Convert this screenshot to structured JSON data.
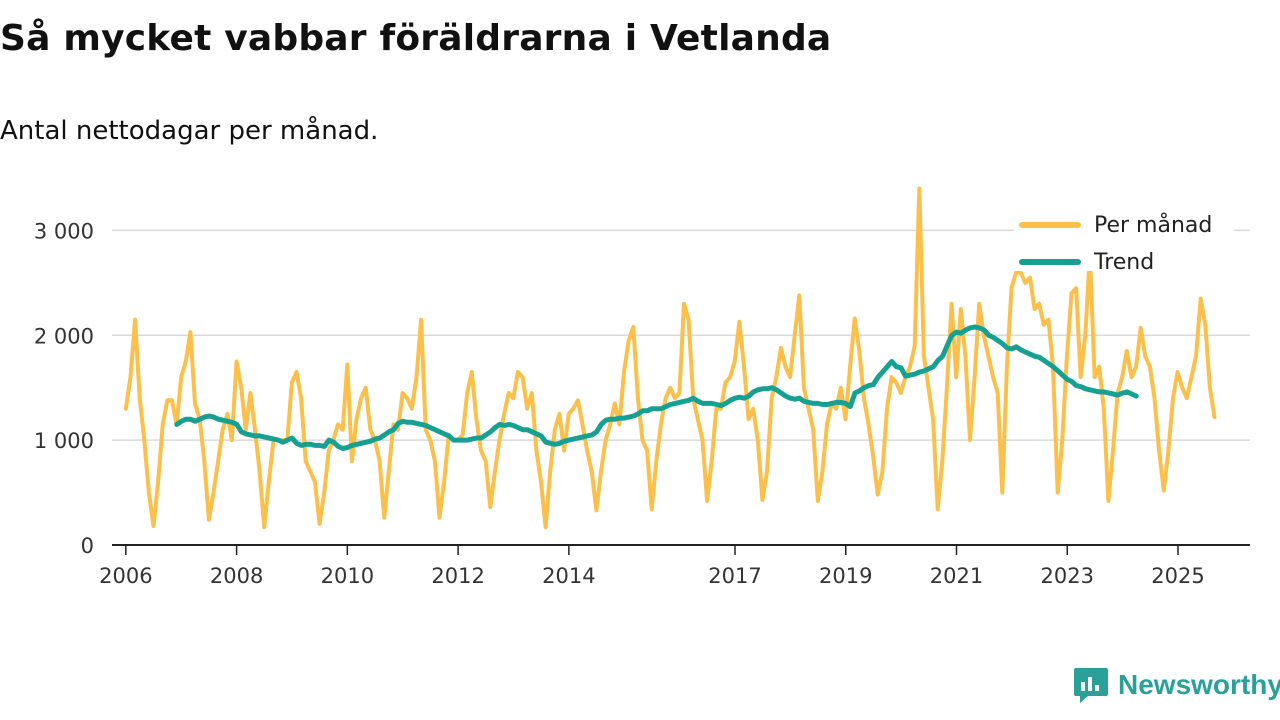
{
  "title": "Så mycket vabbar föräldrarna i Vetlanda",
  "subtitle": "Antal nettodagar per månad.",
  "brand": {
    "name": "Newsworthy"
  },
  "colors": {
    "monthly": "#fcc04a",
    "trend": "#16a092",
    "grid": "#d9d9d9",
    "axis": "#222222",
    "brand": "#2aa198"
  },
  "chart_data": {
    "type": "line",
    "title": "Så mycket vabbar föräldrarna i Vetlanda",
    "subtitle": "Antal nettodagar per månad.",
    "xlabel": "",
    "ylabel": "",
    "xlim": [
      2005.75,
      2026.3
    ],
    "ylim": [
      0,
      3500
    ],
    "grid": true,
    "legend_position": "top-right",
    "x_ticks": [
      2006,
      2008,
      2010,
      2012,
      2014,
      2017,
      2019,
      2021,
      2023,
      2025
    ],
    "x_tick_labels": [
      "2006",
      "2008",
      "2010",
      "2012",
      "2014",
      "2017",
      "2019",
      "2021",
      "2023",
      "2025"
    ],
    "y_ticks": [
      0,
      1000,
      2000,
      3000
    ],
    "y_tick_labels": [
      "0",
      "1 000",
      "2 000",
      "3 000"
    ],
    "series": [
      {
        "name": "Per månad",
        "color": "#fcc04a",
        "start": 2006.0,
        "step": 0.0833,
        "values": [
          1300,
          1600,
          2150,
          1400,
          1000,
          500,
          180,
          600,
          1150,
          1380,
          1380,
          1150,
          1600,
          1750,
          2030,
          1350,
          1200,
          800,
          240,
          500,
          800,
          1100,
          1250,
          1000,
          1750,
          1500,
          1100,
          1450,
          1100,
          700,
          170,
          600,
          1000,
          1000,
          1000,
          1000,
          1550,
          1650,
          1400,
          800,
          700,
          600,
          200,
          500,
          900,
          1000,
          1150,
          1100,
          1720,
          800,
          1200,
          1400,
          1500,
          1100,
          1000,
          800,
          260,
          700,
          1150,
          1100,
          1450,
          1400,
          1300,
          1600,
          2150,
          1100,
          1000,
          800,
          260,
          600,
          1050,
          1000,
          1000,
          1050,
          1450,
          1650,
          1200,
          900,
          800,
          360,
          700,
          1000,
          1250,
          1450,
          1400,
          1650,
          1600,
          1300,
          1450,
          900,
          600,
          170,
          700,
          1100,
          1250,
          900,
          1250,
          1300,
          1380,
          1150,
          900,
          700,
          330,
          700,
          1000,
          1150,
          1350,
          1150,
          1650,
          1950,
          2080,
          1400,
          1000,
          900,
          340,
          800,
          1150,
          1400,
          1500,
          1400,
          1450,
          2300,
          2150,
          1400,
          1200,
          1000,
          420,
          800,
          1300,
          1300,
          1550,
          1600,
          1750,
          2130,
          1700,
          1200,
          1300,
          1000,
          430,
          700,
          1400,
          1600,
          1880,
          1700,
          1600,
          2000,
          2380,
          1500,
          1300,
          1100,
          420,
          700,
          1150,
          1350,
          1300,
          1500,
          1200,
          1700,
          2160,
          1850,
          1400,
          1150,
          850,
          480,
          700,
          1300,
          1600,
          1550,
          1450,
          1600,
          1700,
          1900,
          3400,
          1800,
          1500,
          1200,
          340,
          800,
          1500,
          2300,
          1600,
          2250,
          1800,
          1000,
          1600,
          2300,
          2000,
          1800,
          1600,
          1450,
          500,
          1700,
          2450,
          2600,
          2600,
          2500,
          2550,
          2250,
          2300,
          2100,
          2150,
          1700,
          500,
          1000,
          1800,
          2400,
          2450,
          1600,
          2000,
          2780,
          1600,
          1700,
          1300,
          420,
          900,
          1450,
          1600,
          1850,
          1600,
          1700,
          2070,
          1800,
          1700,
          1400,
          900,
          520,
          900,
          1400,
          1650,
          1500,
          1400,
          1600,
          1800,
          2350,
          2100,
          1500,
          1220
        ]
      },
      {
        "name": "Trend",
        "color": "#16a092",
        "start": 2006.92,
        "step": 0.0833,
        "values": [
          1150,
          1180,
          1200,
          1200,
          1180,
          1200,
          1220,
          1230,
          1220,
          1200,
          1190,
          1180,
          1170,
          1150,
          1080,
          1060,
          1050,
          1040,
          1040,
          1030,
          1020,
          1010,
          1000,
          980,
          1000,
          1020,
          970,
          950,
          960,
          960,
          950,
          950,
          940,
          1000,
          980,
          940,
          920,
          930,
          950,
          960,
          970,
          980,
          990,
          1010,
          1020,
          1050,
          1080,
          1100,
          1160,
          1180,
          1170,
          1170,
          1160,
          1150,
          1140,
          1120,
          1100,
          1080,
          1060,
          1040,
          1000,
          1000,
          1000,
          1000,
          1010,
          1020,
          1020,
          1050,
          1080,
          1120,
          1150,
          1140,
          1150,
          1140,
          1120,
          1100,
          1100,
          1080,
          1060,
          1040,
          980,
          970,
          960,
          970,
          990,
          1000,
          1010,
          1020,
          1030,
          1040,
          1050,
          1080,
          1150,
          1190,
          1200,
          1200,
          1210,
          1210,
          1220,
          1230,
          1250,
          1280,
          1280,
          1300,
          1300,
          1300,
          1320,
          1340,
          1350,
          1360,
          1370,
          1380,
          1400,
          1370,
          1350,
          1350,
          1350,
          1340,
          1330,
          1350,
          1380,
          1400,
          1410,
          1400,
          1420,
          1460,
          1480,
          1490,
          1490,
          1500,
          1480,
          1450,
          1420,
          1400,
          1390,
          1400,
          1370,
          1360,
          1350,
          1350,
          1340,
          1340,
          1350,
          1360,
          1360,
          1350,
          1320,
          1450,
          1470,
          1500,
          1520,
          1530,
          1600,
          1650,
          1700,
          1750,
          1700,
          1690,
          1610,
          1620,
          1630,
          1650,
          1660,
          1680,
          1700,
          1760,
          1800,
          1900,
          2000,
          2030,
          2020,
          2050,
          2070,
          2080,
          2070,
          2050,
          2000,
          1980,
          1950,
          1920,
          1880,
          1870,
          1890,
          1860,
          1840,
          1820,
          1800,
          1790,
          1760,
          1730,
          1700,
          1660,
          1620,
          1580,
          1560,
          1520,
          1510,
          1490,
          1480,
          1470,
          1460,
          1460,
          1450,
          1440,
          1430,
          1450,
          1460,
          1440,
          1420
        ]
      }
    ]
  }
}
